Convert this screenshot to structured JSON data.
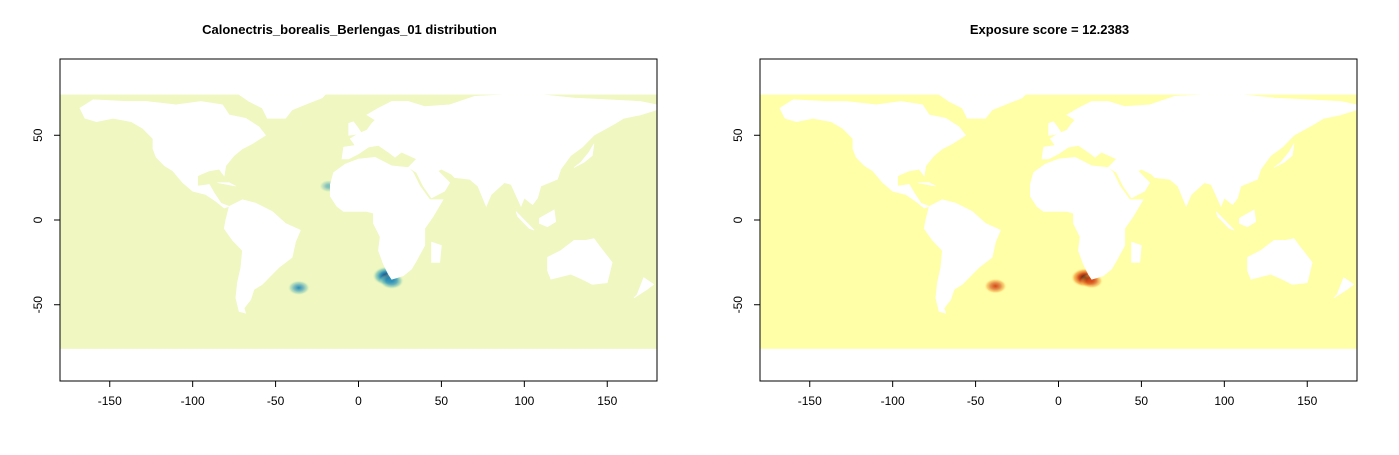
{
  "chart_data": [
    {
      "type": "heatmap",
      "title": "Calonectris_borealis_Berlengas_01 distribution",
      "xlim": [
        -180,
        180
      ],
      "ylim": [
        -95,
        95
      ],
      "x_ticks": [
        -150,
        -100,
        -50,
        0,
        50,
        100,
        150
      ],
      "y_ticks": [
        50,
        0,
        -50
      ],
      "ocean_extent": {
        "lat_max": 74,
        "lat_min": -76
      },
      "background_color": "#f0f7c0",
      "color_scale": [
        "#f0f7c0",
        "#7cc8b5",
        "#2a8fb8",
        "#08306b"
      ],
      "hotspots": [
        {
          "lon": -36,
          "lat": -40,
          "intensity": 0.55
        },
        {
          "lon": 17,
          "lat": -33,
          "intensity": 1.0
        },
        {
          "lon": 20,
          "lat": -36,
          "intensity": 0.7
        },
        {
          "lon": -18,
          "lat": 20,
          "intensity": 0.3
        }
      ]
    },
    {
      "type": "heatmap",
      "title": "Exposure score = 12.2383",
      "xlim": [
        -180,
        180
      ],
      "ylim": [
        -95,
        95
      ],
      "x_ticks": [
        -150,
        -100,
        -50,
        0,
        50,
        100,
        150
      ],
      "y_ticks": [
        50,
        0,
        -50
      ],
      "ocean_extent": {
        "lat_max": 74,
        "lat_min": -76
      },
      "background_color": "#ffffa8",
      "color_scale": [
        "#ffffa8",
        "#f6a23a",
        "#d54a17",
        "#2a0a05"
      ],
      "hotspots": [
        {
          "lon": -38,
          "lat": -39,
          "intensity": 0.6
        },
        {
          "lon": 16,
          "lat": -34,
          "intensity": 1.0
        },
        {
          "lon": 20,
          "lat": -36,
          "intensity": 0.6
        }
      ]
    }
  ]
}
